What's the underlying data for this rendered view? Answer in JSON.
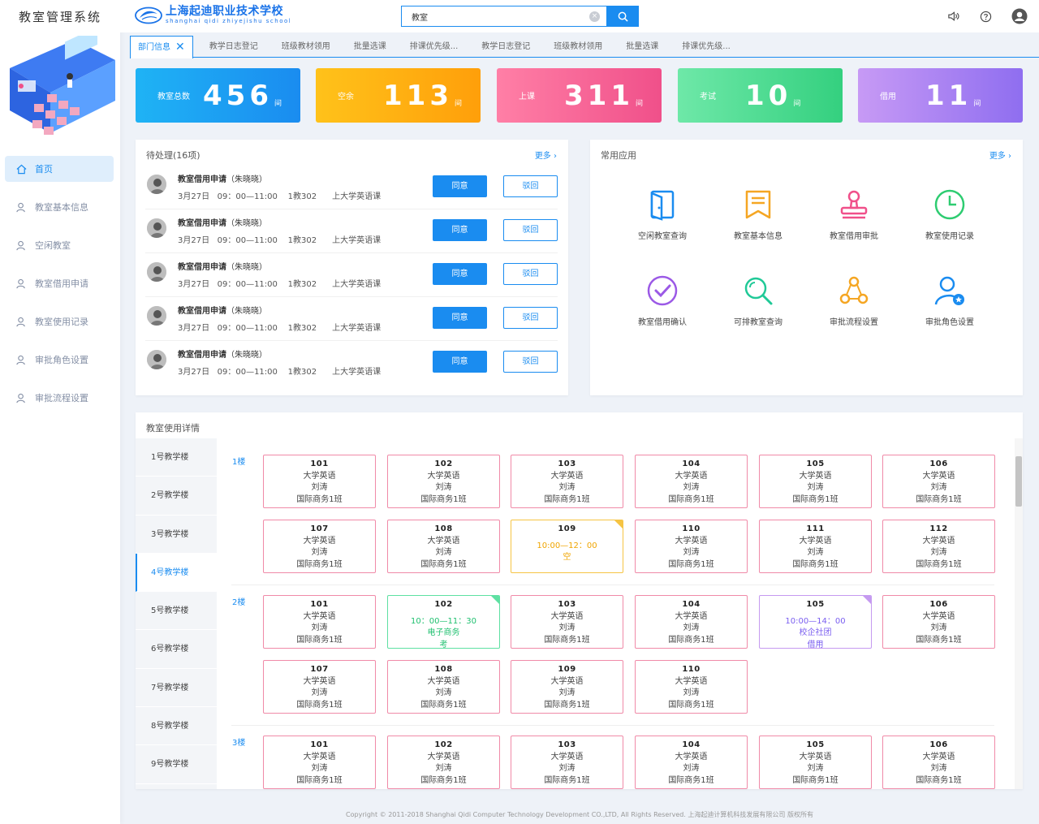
{
  "sidebar": {
    "title": "教室管理系统",
    "items": [
      {
        "label": "首页"
      },
      {
        "label": "教室基本信息"
      },
      {
        "label": "空闲教室"
      },
      {
        "label": "教室借用申请"
      },
      {
        "label": "教室使用记录"
      },
      {
        "label": "审批角色设置"
      },
      {
        "label": "审批流程设置"
      }
    ]
  },
  "header": {
    "school_cn": "上海起迪职业技术学校",
    "school_en": "shanghai qidi zhiyejishu school",
    "search_value": "教室",
    "icons": [
      "volume-icon",
      "help-icon",
      "user-icon"
    ]
  },
  "tabs": [
    "部门信息",
    "教学日志登记",
    "班级教材领用",
    "批量选课",
    "排课优先级...",
    "教学日志登记",
    "班级教材领用",
    "批量选课",
    "排课优先级..."
  ],
  "stats": [
    {
      "label": "教室总数",
      "value": "456",
      "unit": "间"
    },
    {
      "label": "空余",
      "value": "113",
      "unit": "间"
    },
    {
      "label": "上课",
      "value": "311",
      "unit": "间"
    },
    {
      "label": "考试",
      "value": "10",
      "unit": "间"
    },
    {
      "label": "借用",
      "value": "11",
      "unit": "间"
    }
  ],
  "pending": {
    "title": "待处理(16项)",
    "more": "更多",
    "agree_label": "同意",
    "reject_label": "驳回",
    "items": [
      {
        "title": "教室借用申请",
        "applicant": "（朱晓晓）",
        "meta": "3月27日   09：00—11:00    1教302      上大学英语课"
      },
      {
        "title": "教室借用申请",
        "applicant": "（朱晓晓）",
        "meta": "3月27日   09：00—11:00    1教302      上大学英语课"
      },
      {
        "title": "教室借用申请",
        "applicant": "（朱晓晓）",
        "meta": "3月27日   09：00—11:00    1教302      上大学英语课"
      },
      {
        "title": "教室借用申请",
        "applicant": "（朱晓晓）",
        "meta": "3月27日   09：00—11:00    1教302      上大学英语课"
      },
      {
        "title": "教室借用申请",
        "applicant": "（朱晓晓）",
        "meta": "3月27日   09：00—11:00    1教302      上大学英语课"
      }
    ]
  },
  "apps": {
    "title": "常用应用",
    "more": "更多",
    "items": [
      {
        "label": "空闲教室查询",
        "icon": "door-icon",
        "color": "#1a8cf0"
      },
      {
        "label": "教室基本信息",
        "icon": "bookmark-icon",
        "color": "#f5a623"
      },
      {
        "label": "教室借用审批",
        "icon": "stamp-icon",
        "color": "#f0508a"
      },
      {
        "label": "教室使用记录",
        "icon": "clock-icon",
        "color": "#2ecc71"
      },
      {
        "label": "教室借用确认",
        "icon": "check-circle-icon",
        "color": "#9b59e6"
      },
      {
        "label": "可排教室查询",
        "icon": "magnifier-icon",
        "color": "#20c997"
      },
      {
        "label": "审批流程设置",
        "icon": "flow-icon",
        "color": "#f5a623"
      },
      {
        "label": "审批角色设置",
        "icon": "user-star-icon",
        "color": "#1a8cf0"
      }
    ]
  },
  "usage": {
    "title": "教室使用详情",
    "buildings": [
      "1号教学楼",
      "2号教学楼",
      "3号教学楼",
      "4号教学楼",
      "5号教学楼",
      "6号教学楼",
      "7号教学楼",
      "8号教学楼",
      "9号教学楼"
    ],
    "active_building": "4号教学楼",
    "floors": [
      {
        "label": "1楼",
        "rooms": [
          {
            "no": "101",
            "lines": [
              "大学英语",
              "刘涛",
              "国际商务1班"
            ],
            "style": "normal"
          },
          {
            "no": "102",
            "lines": [
              "大学英语",
              "刘涛",
              "国际商务1班"
            ],
            "style": "normal"
          },
          {
            "no": "103",
            "lines": [
              "大学英语",
              "刘涛",
              "国际商务1班"
            ],
            "style": "normal"
          },
          {
            "no": "104",
            "lines": [
              "大学英语",
              "刘涛",
              "国际商务1班"
            ],
            "style": "normal"
          },
          {
            "no": "105",
            "lines": [
              "大学英语",
              "刘涛",
              "国际商务1班"
            ],
            "style": "normal"
          },
          {
            "no": "106",
            "lines": [
              "大学英语",
              "刘涛",
              "国际商务1班"
            ],
            "style": "normal"
          },
          {
            "no": "107",
            "lines": [
              "大学英语",
              "刘涛",
              "国际商务1班"
            ],
            "style": "normal"
          },
          {
            "no": "108",
            "lines": [
              "大学英语",
              "刘涛",
              "国际商务1班"
            ],
            "style": "normal"
          },
          {
            "no": "109",
            "lines": [
              "10:00—12：00",
              "空"
            ],
            "style": "yellow"
          },
          {
            "no": "110",
            "lines": [
              "大学英语",
              "刘涛",
              "国际商务1班"
            ],
            "style": "normal"
          },
          {
            "no": "111",
            "lines": [
              "大学英语",
              "刘涛",
              "国际商务1班"
            ],
            "style": "normal"
          },
          {
            "no": "112",
            "lines": [
              "大学英语",
              "刘涛",
              "国际商务1班"
            ],
            "style": "normal"
          }
        ]
      },
      {
        "label": "2楼",
        "rooms": [
          {
            "no": "101",
            "lines": [
              "大学英语",
              "刘涛",
              "国际商务1班"
            ],
            "style": "normal"
          },
          {
            "no": "102",
            "lines": [
              "10：00—11：30",
              "电子商务",
              "考"
            ],
            "style": "green"
          },
          {
            "no": "103",
            "lines": [
              "大学英语",
              "刘涛",
              "国际商务1班"
            ],
            "style": "normal"
          },
          {
            "no": "104",
            "lines": [
              "大学英语",
              "刘涛",
              "国际商务1班"
            ],
            "style": "normal"
          },
          {
            "no": "105",
            "lines": [
              "10:00—14：00",
              "校企社团",
              "借用"
            ],
            "style": "purple"
          },
          {
            "no": "106",
            "lines": [
              "大学英语",
              "刘涛",
              "国际商务1班"
            ],
            "style": "normal"
          },
          {
            "no": "107",
            "lines": [
              "大学英语",
              "刘涛",
              "国际商务1班"
            ],
            "style": "normal"
          },
          {
            "no": "108",
            "lines": [
              "大学英语",
              "刘涛",
              "国际商务1班"
            ],
            "style": "normal"
          },
          {
            "no": "109",
            "lines": [
              "大学英语",
              "刘涛",
              "国际商务1班"
            ],
            "style": "normal"
          },
          {
            "no": "110",
            "lines": [
              "大学英语",
              "刘涛",
              "国际商务1班"
            ],
            "style": "normal"
          }
        ]
      },
      {
        "label": "3楼",
        "rooms": [
          {
            "no": "101",
            "lines": [
              "大学英语",
              "刘涛",
              "国际商务1班"
            ],
            "style": "normal"
          },
          {
            "no": "102",
            "lines": [
              "大学英语",
              "刘涛",
              "国际商务1班"
            ],
            "style": "normal"
          },
          {
            "no": "103",
            "lines": [
              "大学英语",
              "刘涛",
              "国际商务1班"
            ],
            "style": "normal"
          },
          {
            "no": "104",
            "lines": [
              "大学英语",
              "刘涛",
              "国际商务1班"
            ],
            "style": "normal"
          },
          {
            "no": "105",
            "lines": [
              "大学英语",
              "刘涛",
              "国际商务1班"
            ],
            "style": "normal"
          },
          {
            "no": "106",
            "lines": [
              "大学英语",
              "刘涛",
              "国际商务1班"
            ],
            "style": "normal"
          }
        ]
      }
    ]
  },
  "footer": "Copyright © 2011-2018 Shanghai Qidi Computer Technology Development CO.,LTD, All Rights Reserved. 上海起迪计算机科技发展有限公司 版权所有",
  "colors": {
    "accent": "#1a8cf0",
    "stat_gradients": [
      [
        "#1fb3f5",
        "#1a8cf0"
      ],
      [
        "#ffc21a",
        "#ff9f0a"
      ],
      [
        "#ff7fa6",
        "#f0508a"
      ],
      [
        "#6ee8a8",
        "#34d07f"
      ],
      [
        "#c79af5",
        "#8f6ef0"
      ]
    ]
  }
}
